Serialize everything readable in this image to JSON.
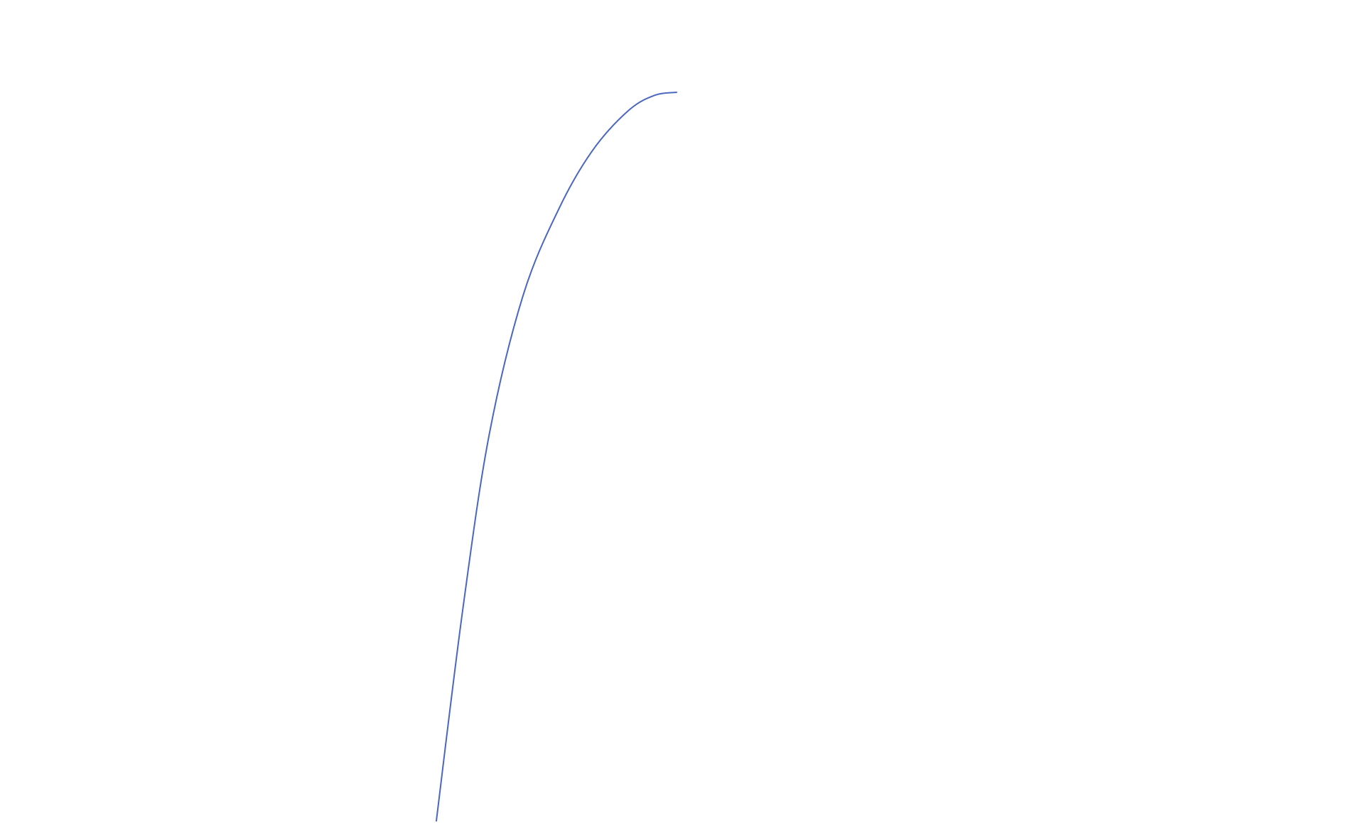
{
  "chart_data": {
    "type": "line",
    "title": "",
    "xlabel": "",
    "ylabel": "",
    "axes_visible": false,
    "grid": false,
    "legend": "none",
    "xlim": [
      0,
      10
    ],
    "ylim": [
      0,
      10
    ],
    "series": [
      {
        "color": "#4a67c0",
        "x": [
          0,
          1.1,
          2.2,
          3.6,
          5.1,
          6.5,
          8.0,
          9.1,
          10
        ],
        "y": [
          0,
          2.9,
          5.3,
          7.2,
          8.4,
          9.2,
          9.75,
          9.96,
          10
        ]
      }
    ]
  }
}
